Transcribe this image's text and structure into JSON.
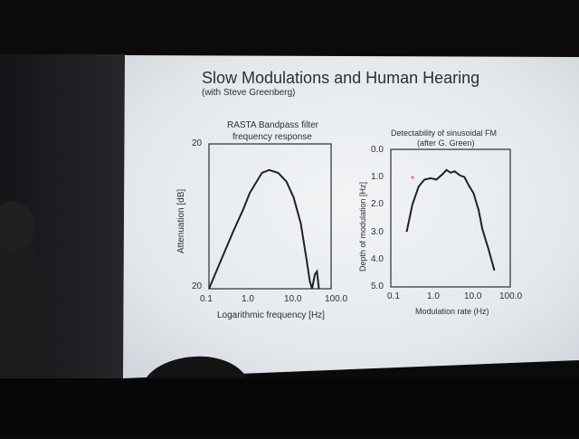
{
  "slide": {
    "title": "Slow Modulations and Human Hearing",
    "subtitle": "(with Steve Greenberg)"
  },
  "chart_data": [
    {
      "type": "line",
      "title": "RASTA Bandpass filter\nfrequency response",
      "title_lines": [
        "RASTA Bandpass filter",
        "frequency response"
      ],
      "xlabel": "Logarithmic frequency [Hz]",
      "ylabel": "Attenuation [dB]",
      "x_scale": "log",
      "xlim": [
        0.1,
        100.0
      ],
      "x_ticks": [
        "0.1",
        "1.0",
        "10.0",
        "100.0"
      ],
      "y_ticks": [
        "20",
        "20"
      ],
      "grid": false,
      "series": [
        {
          "x": [
            0.1,
            0.2,
            0.4,
            0.7,
            1.0,
            2.0,
            3.0,
            5.0,
            8.0,
            12.0,
            18.0,
            25.0,
            30.0,
            34.0,
            40.0,
            45.0,
            50.0
          ],
          "y": [
            0.0,
            0.2,
            0.4,
            0.55,
            0.66,
            0.8,
            0.82,
            0.8,
            0.74,
            0.63,
            0.45,
            0.2,
            0.05,
            0.0,
            0.1,
            0.12,
            0.0
          ]
        }
      ]
    },
    {
      "type": "line",
      "title": "Detectability of sinusoidal FM\n(after G. Green)",
      "title_lines": [
        "Detectability of sinusoidal FM",
        "(after G. Green)"
      ],
      "xlabel": "Modulation rate (Hz)",
      "ylabel": "Depth of modulation [Hz]",
      "x_scale": "log",
      "xlim": [
        0.1,
        100.0
      ],
      "ylim": [
        0.0,
        5.0
      ],
      "y_inverted": true,
      "x_ticks": [
        "0.1",
        "1.0",
        "10.0",
        "100.0"
      ],
      "y_ticks": [
        "0.0",
        "1.0",
        "2.0",
        "3.0",
        "4.0",
        "5.0"
      ],
      "grid": false,
      "series": [
        {
          "x": [
            0.25,
            0.35,
            0.5,
            0.7,
            1.0,
            1.4,
            2.0,
            2.5,
            3.2,
            4.0,
            5.5,
            7.0,
            9.0,
            12.0,
            16.0,
            20.0,
            28.0,
            40.0
          ],
          "y": [
            3.0,
            2.0,
            1.35,
            1.1,
            1.05,
            1.1,
            0.9,
            0.75,
            0.85,
            0.8,
            0.95,
            1.0,
            1.3,
            1.6,
            2.2,
            2.9,
            3.6,
            4.4
          ]
        }
      ]
    }
  ]
}
